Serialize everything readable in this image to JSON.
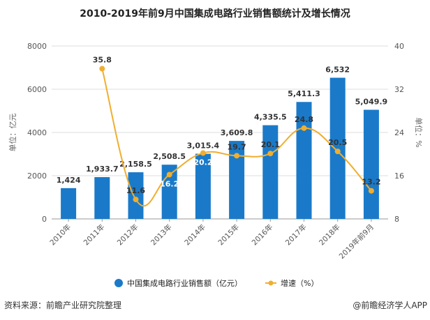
{
  "title": "2010-2019年前9月中国集成电路行业销售额统计及增长情况",
  "source": "资料来源：前瞻产业研究院整理",
  "credit": "@前瞻经济学人APP",
  "watermark": "前瞻产业研究院",
  "chart_data": {
    "type": "bar+line",
    "categories": [
      "2010年",
      "2011年",
      "2012年",
      "2013年",
      "2014年",
      "2015年",
      "2016年",
      "2017年",
      "2018年",
      "2019年前9月"
    ],
    "series": [
      {
        "name": "中国集成电路行业销售额（亿元）",
        "type": "bar",
        "axis": "left",
        "color": "#1a7ac9",
        "values": [
          1424,
          1933.7,
          2158.5,
          2508.5,
          3015.4,
          3609.8,
          4335.5,
          5411.3,
          6532,
          5049.9
        ],
        "labels": [
          "1,424",
          "1,933.7",
          "2,158.5",
          "2,508.5",
          "3,015.4",
          "3,609.8",
          "4,335.5",
          "5,411.3",
          "6,532",
          "5,049.9"
        ]
      },
      {
        "name": "增速（%）",
        "type": "line",
        "axis": "right",
        "color": "#f0ae2f",
        "smooth": true,
        "values": [
          null,
          35.8,
          11.6,
          16.2,
          20.2,
          19.7,
          20.1,
          24.8,
          20.5,
          13.2
        ],
        "labels": [
          "",
          "35.8",
          "11.6",
          "16.2",
          "20.2",
          "19.7",
          "20.1",
          "24.8",
          "20.5",
          "13.2"
        ]
      }
    ],
    "ylabel_left": "单位：亿元",
    "ylabel_right": "单位：%",
    "ylim_left": [
      0,
      8000
    ],
    "yticks_left": [
      "0",
      "2000",
      "4000",
      "6000",
      "8000"
    ],
    "ylim_right": [
      8,
      40
    ],
    "yticks_right": [
      "8",
      "16",
      "24",
      "32",
      "40"
    ],
    "grid": true,
    "legend": "bottom"
  }
}
